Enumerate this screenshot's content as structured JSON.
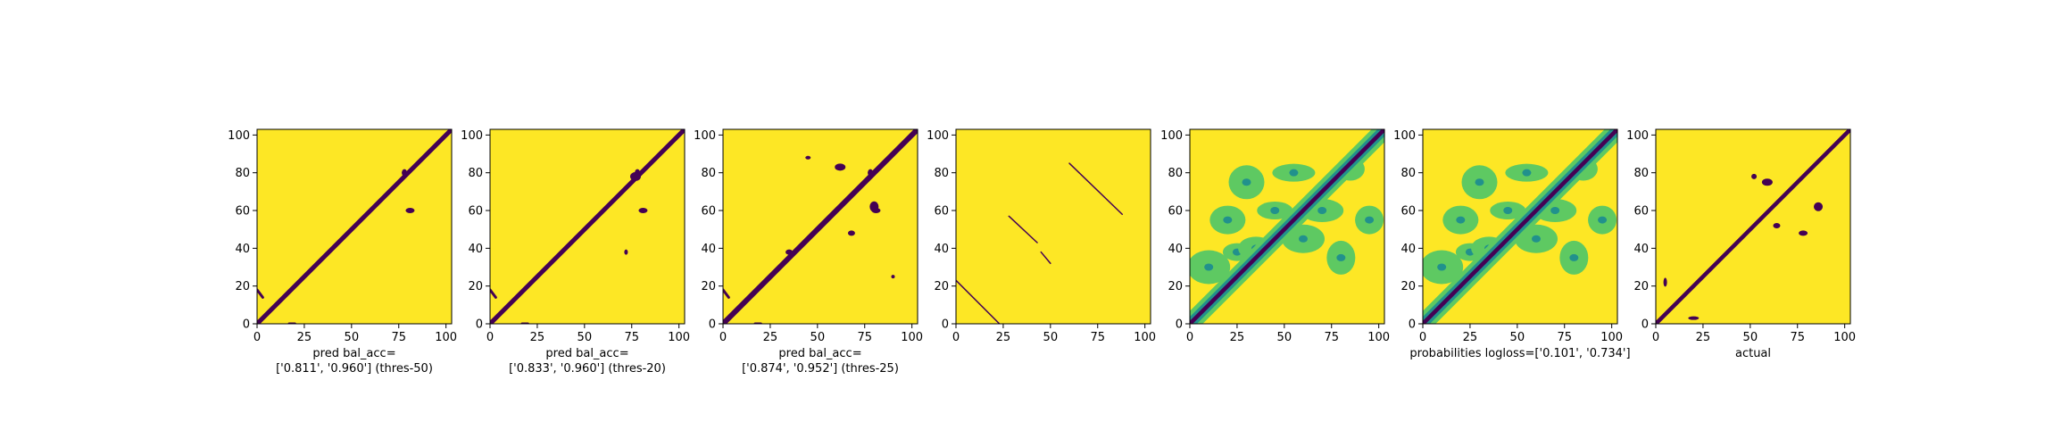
{
  "colors": {
    "high": "#fde725",
    "low": "#440154",
    "mid_green": "#5ec962",
    "mid_teal": "#21918c"
  },
  "chart_data": [
    {
      "type": "heatmap",
      "caption_lines": [
        "pred bal_acc=",
        "['0.811', '0.960'] (thres-50)"
      ],
      "xticks": [
        0,
        25,
        50,
        75,
        100
      ],
      "yticks": [
        0,
        20,
        40,
        60,
        80,
        100
      ],
      "xlim": [
        0,
        103
      ],
      "ylim": [
        103,
        0
      ],
      "colormap": "viridis",
      "content": "binary"
    },
    {
      "type": "heatmap",
      "caption_lines": [
        "pred bal_acc=",
        "['0.833', '0.960'] (thres-20)"
      ],
      "xticks": [
        0,
        25,
        50,
        75,
        100
      ],
      "yticks": [
        0,
        20,
        40,
        60,
        80,
        100
      ],
      "xlim": [
        0,
        103
      ],
      "ylim": [
        103,
        0
      ],
      "colormap": "viridis",
      "content": "binary"
    },
    {
      "type": "heatmap",
      "caption_lines": [
        "pred bal_acc=",
        "['0.874', '0.952'] (thres-25)"
      ],
      "xticks": [
        0,
        25,
        50,
        75,
        100
      ],
      "yticks": [
        0,
        20,
        40,
        60,
        80,
        100
      ],
      "xlim": [
        0,
        103
      ],
      "ylim": [
        103,
        0
      ],
      "colormap": "viridis",
      "content": "binary"
    },
    {
      "type": "heatmap",
      "caption_lines": [],
      "xticks": [
        0,
        25,
        50,
        75,
        100
      ],
      "yticks": [
        0,
        20,
        40,
        60,
        80,
        100
      ],
      "xlim": [
        0,
        103
      ],
      "ylim": [
        103,
        0
      ],
      "colormap": "viridis",
      "content": "binary"
    },
    {
      "type": "heatmap",
      "caption_lines": [],
      "xticks": [
        0,
        25,
        50,
        75,
        100
      ],
      "yticks": [
        0,
        20,
        40,
        60,
        80,
        100
      ],
      "xlim": [
        0,
        103
      ],
      "ylim": [
        103,
        0
      ],
      "colormap": "viridis",
      "content": "continuous"
    },
    {
      "type": "heatmap",
      "caption_lines": [
        "probabilities logloss=['0.101', '0.734']"
      ],
      "xticks": [
        0,
        25,
        50,
        75,
        100
      ],
      "yticks": [
        0,
        20,
        40,
        60,
        80,
        100
      ],
      "xlim": [
        0,
        103
      ],
      "ylim": [
        103,
        0
      ],
      "colormap": "viridis",
      "content": "continuous"
    },
    {
      "type": "heatmap",
      "caption_lines": [
        "actual"
      ],
      "xticks": [
        0,
        25,
        50,
        75,
        100
      ],
      "yticks": [
        0,
        20,
        40,
        60,
        80,
        100
      ],
      "xlim": [
        0,
        103
      ],
      "ylim": [
        103,
        0
      ],
      "colormap": "viridis",
      "content": "binary"
    }
  ]
}
